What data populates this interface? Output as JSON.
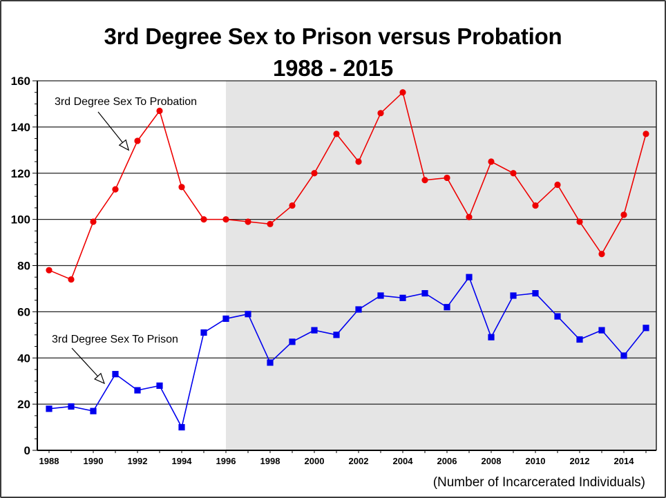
{
  "chart_data": {
    "type": "line",
    "title": "3rd Degree Sex to Prison versus Probation",
    "subtitle": "1988 - 2015",
    "xlabel": "",
    "ylabel": "",
    "units_note": "(Number of Incarcerated Individuals)",
    "x": [
      1988,
      1989,
      1990,
      1991,
      1992,
      1993,
      1994,
      1995,
      1996,
      1997,
      1998,
      1999,
      2000,
      2001,
      2002,
      2003,
      2004,
      2005,
      2006,
      2007,
      2008,
      2009,
      2010,
      2011,
      2012,
      2013,
      2014,
      2015
    ],
    "series": [
      {
        "name": "3rd Degree Sex To Probation",
        "color": "#ee0000",
        "marker": "circle",
        "values": [
          78,
          74,
          99,
          113,
          134,
          147,
          114,
          100,
          100,
          99,
          98,
          106,
          120,
          137,
          125,
          146,
          155,
          117,
          118,
          101,
          125,
          120,
          106,
          115,
          99,
          85,
          102,
          137
        ]
      },
      {
        "name": "3rd Degree Sex To Prison",
        "color": "#0000ee",
        "marker": "square",
        "values": [
          18,
          19,
          17,
          33,
          26,
          28,
          10,
          51,
          57,
          59,
          38,
          47,
          52,
          50,
          61,
          67,
          66,
          68,
          62,
          75,
          49,
          67,
          68,
          58,
          48,
          52,
          41,
          53
        ]
      }
    ],
    "ylim": [
      0,
      160
    ],
    "yticks": [
      "0",
      "20",
      "40",
      "60",
      "80",
      "100",
      "120",
      "140",
      "160"
    ],
    "ytick_values": [
      0,
      20,
      40,
      60,
      80,
      100,
      120,
      140,
      160
    ],
    "xlim": [
      1988,
      2015
    ],
    "xticks": [
      "1988",
      "1990",
      "1992",
      "1994",
      "1996",
      "1998",
      "2000",
      "2002",
      "2004",
      "2006",
      "2008",
      "2010",
      "2012",
      "2014"
    ],
    "xtick_values": [
      1988,
      1990,
      1992,
      1994,
      1996,
      1998,
      2000,
      2002,
      2004,
      2006,
      2008,
      2010,
      2012,
      2014
    ],
    "shaded_region": {
      "from": 1996,
      "to": 2015.5,
      "color": "#e5e5e5"
    },
    "grid": true,
    "annotations": [
      {
        "text": "3rd Degree Sex To Probation",
        "series": 0,
        "arrow_to_year": 1991.6,
        "arrow_to_value": 130
      },
      {
        "text": "3rd Degree Sex To Prison",
        "series": 1,
        "arrow_to_year": 1990.5,
        "arrow_to_value": 29
      }
    ]
  }
}
